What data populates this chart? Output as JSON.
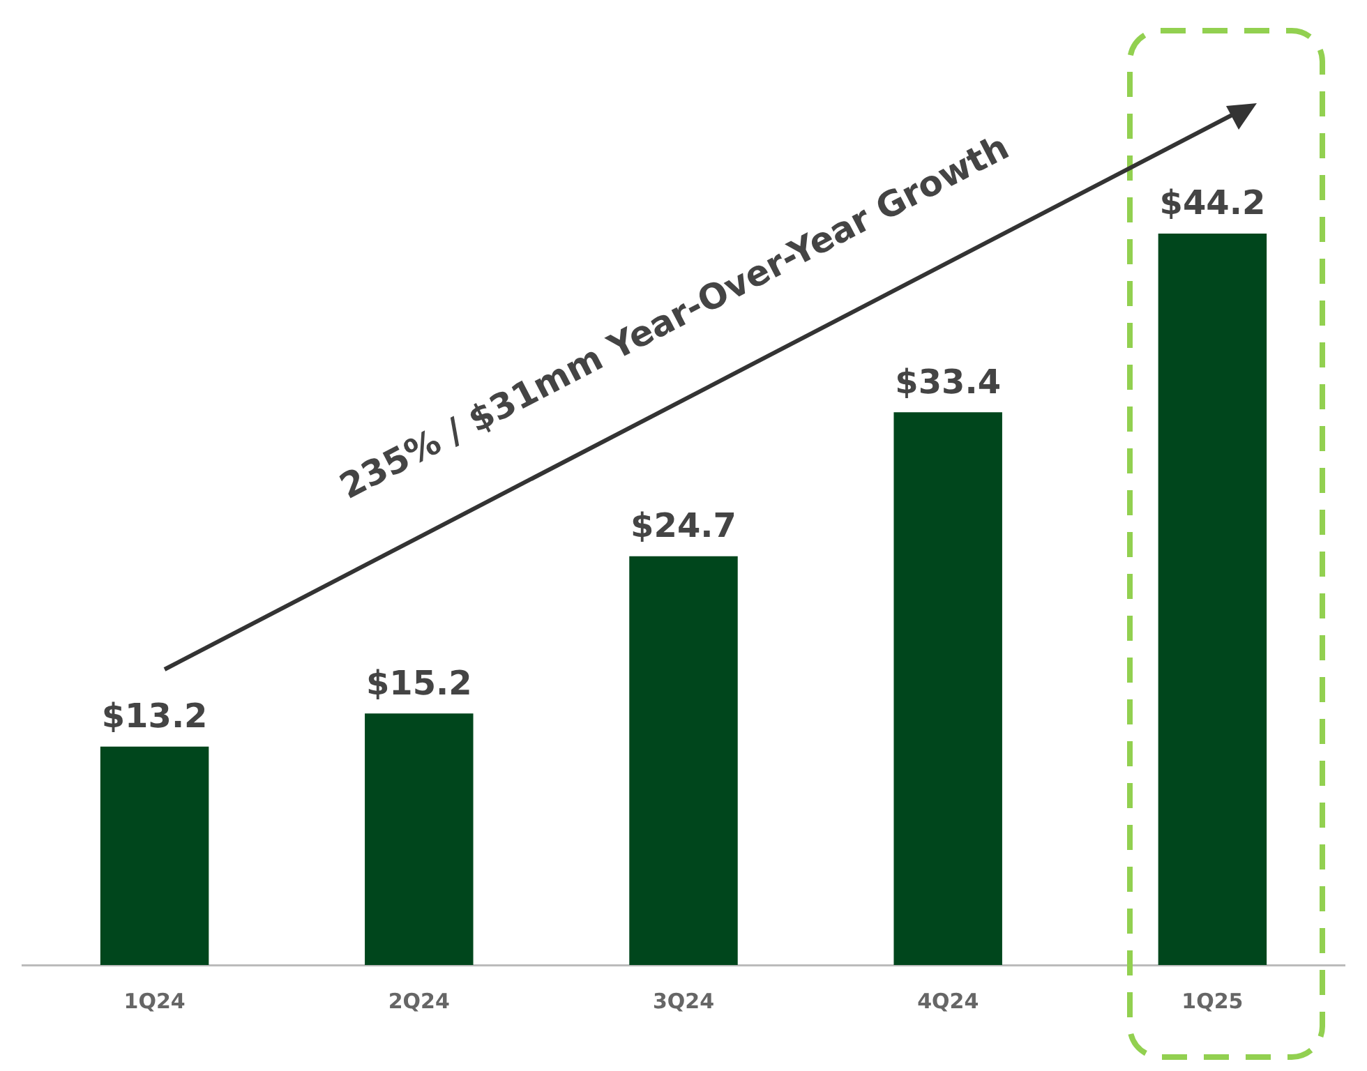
{
  "chart_data": {
    "type": "bar",
    "categories": [
      "1Q24",
      "2Q24",
      "3Q24",
      "4Q24",
      "1Q25"
    ],
    "values": [
      13.2,
      15.2,
      24.7,
      33.4,
      44.2
    ],
    "value_labels": [
      "$13.2",
      "$15.2",
      "$24.7",
      "$33.4",
      "$44.2"
    ],
    "color": "#00461c",
    "annotations": [
      "235% / $31mm Year-Over-Year Growth"
    ],
    "grid": false,
    "legend": false
  }
}
